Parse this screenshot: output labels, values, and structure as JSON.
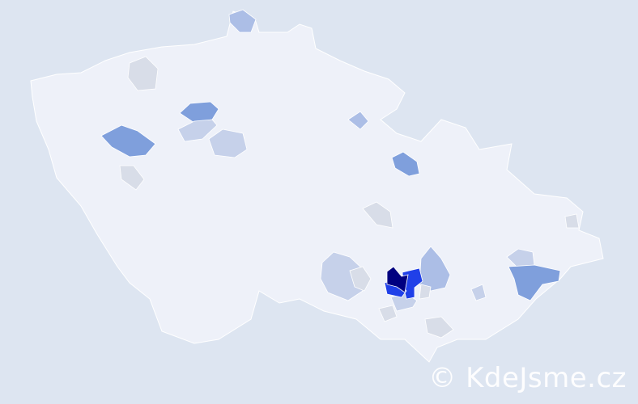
{
  "watermark": "© KdeJsme.cz",
  "colors": {
    "background": "#dde5f1",
    "base": "#eef1f9",
    "border": "#ffffff",
    "level_1": "#d8dde8",
    "level_2": "#c6d1ea",
    "level_3": "#acbee6",
    "level_4": "#7f9fdc",
    "level_5": "#2040e8",
    "level_6": "#000080"
  }
}
